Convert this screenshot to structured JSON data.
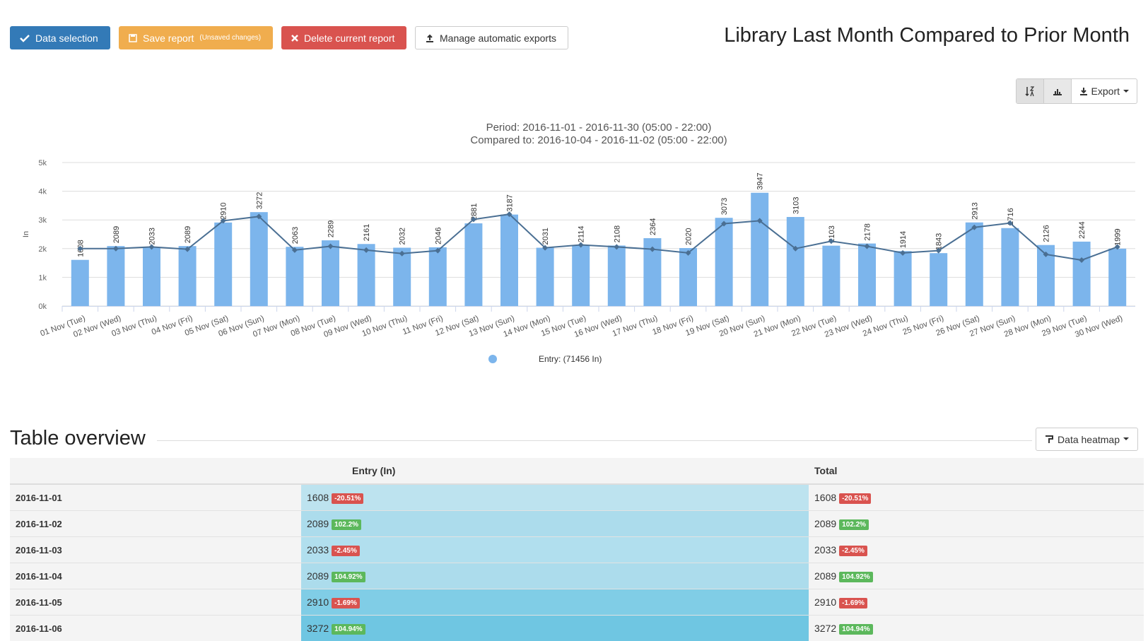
{
  "toolbar": {
    "data_selection": "Data selection",
    "save_report": "Save report",
    "unsaved": "(Unsaved changes)",
    "delete_report": "Delete current report",
    "manage_exports": "Manage automatic exports",
    "export": "Export"
  },
  "page_title": "Library Last Month Compared to Prior Month",
  "chart_data": {
    "type": "bar",
    "subtitle": [
      "Period: 2016-11-01 - 2016-11-30 (05:00 - 22:00)",
      "Compared to: 2016-10-04 - 2016-11-02 (05:00 - 22:00)"
    ],
    "y_label": "In",
    "categories": [
      "01 Nov (Tue)",
      "02 Nov (Wed)",
      "03 Nov (Thu)",
      "04 Nov (Fri)",
      "05 Nov (Sat)",
      "06 Nov (Sun)",
      "07 Nov (Mon)",
      "08 Nov (Tue)",
      "09 Nov (Wed)",
      "10 Nov (Thu)",
      "11 Nov (Fri)",
      "12 Nov (Sat)",
      "13 Nov (Sun)",
      "14 Nov (Mon)",
      "15 Nov (Tue)",
      "16 Nov (Wed)",
      "17 Nov (Thu)",
      "18 Nov (Fri)",
      "19 Nov (Sat)",
      "20 Nov (Sun)",
      "21 Nov (Mon)",
      "22 Nov (Tue)",
      "23 Nov (Wed)",
      "24 Nov (Thu)",
      "25 Nov (Fri)",
      "26 Nov (Sat)",
      "27 Nov (Sun)",
      "28 Nov (Mon)",
      "29 Nov (Tue)",
      "30 Nov (Wed)"
    ],
    "series": [
      {
        "name": "Entry: (71456 In)",
        "type": "bar",
        "color": "#7cb5ec",
        "values": [
          1608,
          2089,
          2033,
          2089,
          2910,
          3272,
          2063,
          2289,
          2161,
          2032,
          2046,
          2881,
          3187,
          2031,
          2114,
          2108,
          2364,
          2020,
          3073,
          3947,
          3103,
          2103,
          2178,
          1914,
          1843,
          2913,
          2716,
          2126,
          2244,
          1999
        ]
      },
      {
        "type": "line",
        "color": "#4a6f93",
        "values": [
          2000,
          2000,
          2060,
          1980,
          2970,
          3120,
          1950,
          2080,
          1950,
          1830,
          1930,
          3020,
          3200,
          2030,
          2130,
          2060,
          1980,
          1850,
          2870,
          2970,
          2000,
          2260,
          2080,
          1850,
          1930,
          2740,
          2890,
          1800,
          1600,
          2060
        ]
      }
    ],
    "ylim": [
      0,
      5000
    ],
    "yticks": [
      {
        "value": 0,
        "label": "0k"
      },
      {
        "value": 1000,
        "label": "1k"
      },
      {
        "value": 2000,
        "label": "2k"
      },
      {
        "value": 3000,
        "label": "3k"
      },
      {
        "value": 4000,
        "label": "4k"
      },
      {
        "value": 5000,
        "label": "5k"
      }
    ],
    "grid": true
  },
  "table": {
    "title": "Table overview",
    "heatmap_button": "Data heatmap",
    "headers": [
      "Entry (In)",
      "Total"
    ],
    "rows": [
      {
        "date": "2016-11-01",
        "entry": 1608,
        "entry_change": {
          "value": -20.51,
          "label": "-20.51%"
        },
        "total": 1608,
        "total_change": {
          "value": -20.51,
          "label": "-20.51%"
        },
        "heat_color": "#bde3ef"
      },
      {
        "date": "2016-11-02",
        "entry": 2089,
        "entry_change": {
          "value": 102.2,
          "label": "102.2%"
        },
        "total": 2089,
        "total_change": {
          "value": 102.2,
          "label": "102.2%"
        },
        "heat_color": "#acdcec"
      },
      {
        "date": "2016-11-03",
        "entry": 2033,
        "entry_change": {
          "value": -2.45,
          "label": "-2.45%"
        },
        "total": 2033,
        "total_change": {
          "value": -2.45,
          "label": "-2.45%"
        },
        "heat_color": "#b1dfee"
      },
      {
        "date": "2016-11-04",
        "entry": 2089,
        "entry_change": {
          "value": 104.92,
          "label": "104.92%"
        },
        "total": 2089,
        "total_change": {
          "value": 104.92,
          "label": "104.92%"
        },
        "heat_color": "#acdcec"
      },
      {
        "date": "2016-11-05",
        "entry": 2910,
        "entry_change": {
          "value": -1.69,
          "label": "-1.69%"
        },
        "total": 2910,
        "total_change": {
          "value": -1.69,
          "label": "-1.69%"
        },
        "heat_color": "#80cde6"
      },
      {
        "date": "2016-11-06",
        "entry": 3272,
        "entry_change": {
          "value": 104.94,
          "label": "104.94%"
        },
        "total": 3272,
        "total_change": {
          "value": 104.94,
          "label": "104.94%"
        },
        "heat_color": "#6fc6e2"
      }
    ]
  }
}
